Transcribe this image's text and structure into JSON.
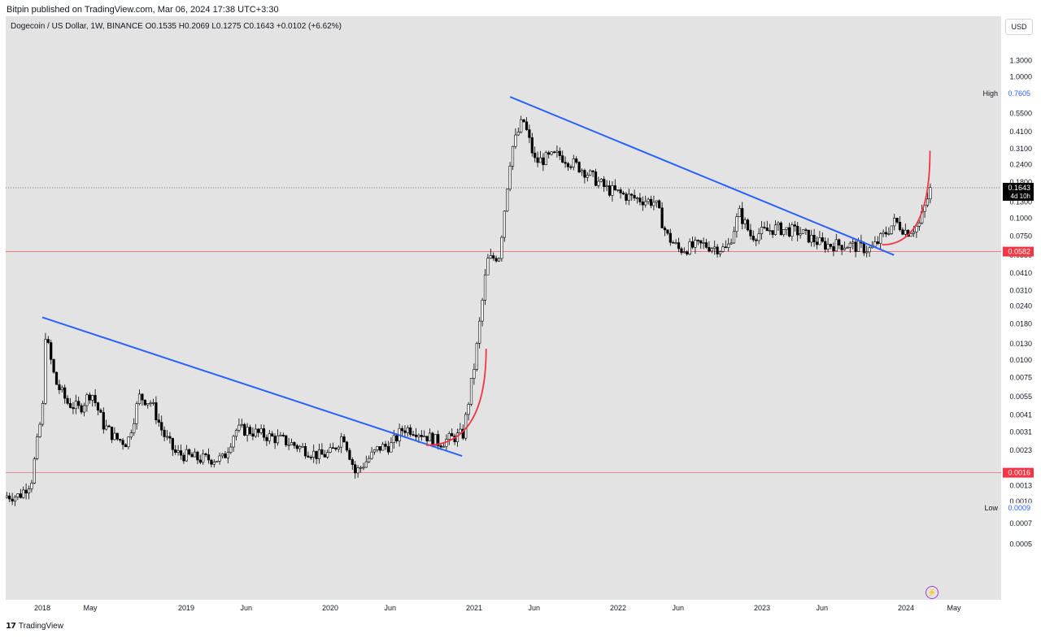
{
  "header": {
    "published_line": "Bitpin published on TradingView.com, Mar 06, 2024 17:38 UTC+3:30"
  },
  "symbol": {
    "line": "Dogecoin / US Dollar, 1W, BINANCE  O0.1535  H0.2069  L0.1275  C0.1643  +0.0102 (+6.62%)"
  },
  "currency_button": "USD",
  "footer": {
    "brand": "TradingView",
    "logo_text": "17"
  },
  "colors": {
    "background": "#e3e3e3",
    "candle_up": "#ffffff",
    "candle_down": "#000000",
    "trendline": "#2962ff",
    "curve": "#f23645",
    "support": "#f23645"
  },
  "chart_data": {
    "type": "candlestick",
    "title": "",
    "x_ticks": [
      "2018",
      "May",
      "2019",
      "Jun",
      "2020",
      "Jun",
      "2021",
      "Jun",
      "2022",
      "Jun",
      "2023",
      "Jun",
      "2024",
      "May"
    ],
    "y_scale": "log",
    "y_ticks": [
      "1.3000",
      "1.0000",
      "0.5500",
      "0.4100",
      "0.3100",
      "0.2400",
      "0.1800",
      "0.1300",
      "0.1000",
      "0.0750",
      "0.0550",
      "0.0410",
      "0.0310",
      "0.0240",
      "0.0180",
      "0.0130",
      "0.0100",
      "0.0075",
      "0.0055",
      "0.0041",
      "0.0031",
      "0.0023",
      "0.0013",
      "0.0010",
      "0.0007",
      "0.0005"
    ],
    "price_labels": [
      {
        "label": "High",
        "value": "0.7605"
      },
      {
        "label": "",
        "value": "0.1643",
        "countdown": "4d 10h"
      },
      {
        "label": "",
        "value": "0.0582"
      },
      {
        "label": "",
        "value": "0.0016"
      },
      {
        "label": "Low",
        "value": "0.0009"
      }
    ],
    "last_close": 0.1643,
    "horizontal_levels": [
      0.0582,
      0.0016
    ],
    "trendlines": [
      {
        "from": [
          "2018-01",
          0.02
        ],
        "to": [
          "2020-12",
          0.0021
        ]
      },
      {
        "from": [
          "2021-04",
          0.72
        ],
        "to": [
          "2023-12",
          0.055
        ]
      }
    ],
    "curves": [
      {
        "from": [
          "2020-09",
          0.0025
        ],
        "to": [
          "2021-02",
          0.012
        ]
      },
      {
        "from": [
          "2023-11",
          0.065
        ],
        "to": [
          "2024-03",
          0.3
        ]
      }
    ],
    "price_path": [
      [
        "2017-11",
        0.0011
      ],
      [
        "2017-12",
        0.0014
      ],
      [
        "2018-01",
        0.005
      ],
      [
        "2018-01",
        0.018
      ],
      [
        "2018-02",
        0.007
      ],
      [
        "2018-03",
        0.005
      ],
      [
        "2018-04",
        0.0045
      ],
      [
        "2018-05",
        0.006
      ],
      [
        "2018-06",
        0.0035
      ],
      [
        "2018-07",
        0.0028
      ],
      [
        "2018-08",
        0.0026
      ],
      [
        "2018-09",
        0.0055
      ],
      [
        "2018-10",
        0.005
      ],
      [
        "2018-11",
        0.003
      ],
      [
        "2018-12",
        0.0022
      ],
      [
        "2019-02",
        0.002
      ],
      [
        "2019-04",
        0.002
      ],
      [
        "2019-05",
        0.0032
      ],
      [
        "2019-06",
        0.0032
      ],
      [
        "2019-07",
        0.003
      ],
      [
        "2019-09",
        0.0027
      ],
      [
        "2019-11",
        0.0023
      ],
      [
        "2019-12",
        0.0021
      ],
      [
        "2020-01",
        0.0022
      ],
      [
        "2020-02",
        0.003
      ],
      [
        "2020-03",
        0.0016
      ],
      [
        "2020-05",
        0.0024
      ],
      [
        "2020-06",
        0.0025
      ],
      [
        "2020-07",
        0.0033
      ],
      [
        "2020-08",
        0.0032
      ],
      [
        "2020-10",
        0.0026
      ],
      [
        "2020-12",
        0.003
      ],
      [
        "2021-01",
        0.01
      ],
      [
        "2021-02",
        0.05
      ],
      [
        "2021-03",
        0.055
      ],
      [
        "2021-04",
        0.3
      ],
      [
        "2021-05",
        0.5
      ],
      [
        "2021-06",
        0.25
      ],
      [
        "2021-08",
        0.28
      ],
      [
        "2021-10",
        0.22
      ],
      [
        "2021-12",
        0.16
      ],
      [
        "2022-02",
        0.14
      ],
      [
        "2022-04",
        0.13
      ],
      [
        "2022-05",
        0.075
      ],
      [
        "2022-06",
        0.06
      ],
      [
        "2022-08",
        0.065
      ],
      [
        "2022-10",
        0.06
      ],
      [
        "2022-11",
        0.11
      ],
      [
        "2022-12",
        0.075
      ],
      [
        "2023-02",
        0.085
      ],
      [
        "2023-04",
        0.08
      ],
      [
        "2023-06",
        0.065
      ],
      [
        "2023-08",
        0.065
      ],
      [
        "2023-10",
        0.06
      ],
      [
        "2023-11",
        0.075
      ],
      [
        "2023-12",
        0.095
      ],
      [
        "2024-01",
        0.08
      ],
      [
        "2024-02",
        0.09
      ],
      [
        "2024-03",
        0.1643
      ]
    ]
  }
}
